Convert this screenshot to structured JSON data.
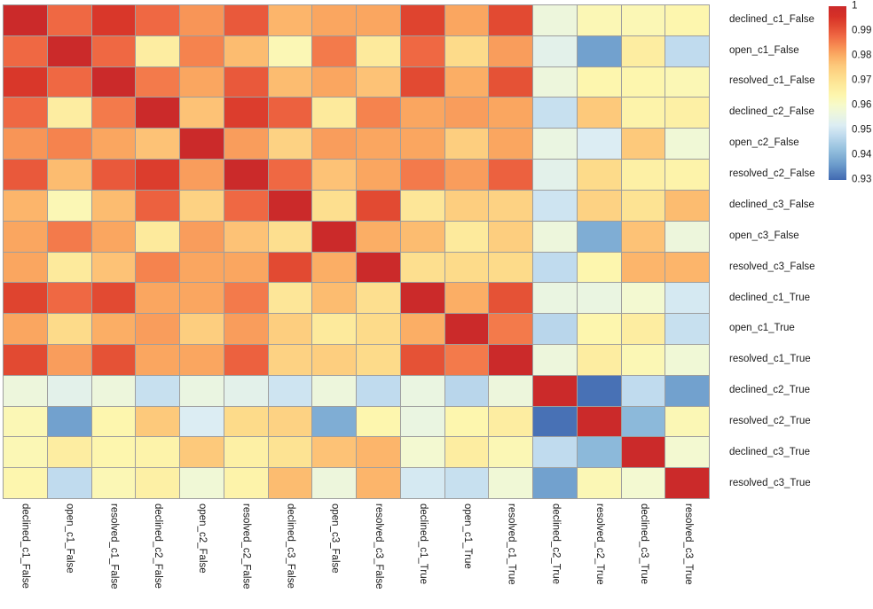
{
  "chart_data": {
    "type": "heatmap",
    "title": "",
    "xlabel": "",
    "ylabel": "",
    "row_label_side": "right",
    "col_label_rotation_deg": 90,
    "grid_line_color": "#9e9e9e",
    "background_color": "#ffffff",
    "categories": [
      "declined_c1_False",
      "open_c1_False",
      "resolved_c1_False",
      "declined_c2_False",
      "open_c2_False",
      "resolved_c2_False",
      "declined_c3_False",
      "open_c3_False",
      "resolved_c3_False",
      "declined_c1_True",
      "open_c1_True",
      "resolved_c1_True",
      "declined_c2_True",
      "resolved_c2_True",
      "declined_c3_True",
      "resolved_c3_True"
    ],
    "matrix": [
      [
        1.0,
        0.988,
        0.995,
        0.988,
        0.983,
        0.99,
        0.979,
        0.981,
        0.981,
        0.993,
        0.981,
        0.992,
        0.957,
        0.963,
        0.963,
        0.964
      ],
      [
        0.988,
        1.0,
        0.988,
        0.967,
        0.985,
        0.978,
        0.963,
        0.986,
        0.968,
        0.988,
        0.972,
        0.982,
        0.954,
        0.937,
        0.967,
        0.948
      ],
      [
        0.995,
        0.988,
        1.0,
        0.986,
        0.981,
        0.99,
        0.978,
        0.981,
        0.977,
        0.992,
        0.98,
        0.991,
        0.957,
        0.964,
        0.964,
        0.963
      ],
      [
        0.988,
        0.967,
        0.986,
        1.0,
        0.977,
        0.994,
        0.989,
        0.968,
        0.985,
        0.981,
        0.982,
        0.981,
        0.949,
        0.976,
        0.965,
        0.966
      ],
      [
        0.983,
        0.985,
        0.981,
        0.977,
        1.0,
        0.982,
        0.974,
        0.982,
        0.981,
        0.981,
        0.975,
        0.981,
        0.956,
        0.952,
        0.976,
        0.958
      ],
      [
        0.99,
        0.978,
        0.99,
        0.994,
        0.982,
        1.0,
        0.988,
        0.977,
        0.981,
        0.986,
        0.982,
        0.989,
        0.954,
        0.972,
        0.966,
        0.965
      ],
      [
        0.979,
        0.963,
        0.978,
        0.989,
        0.974,
        0.988,
        1.0,
        0.971,
        0.992,
        0.969,
        0.975,
        0.974,
        0.95,
        0.974,
        0.97,
        0.978
      ],
      [
        0.981,
        0.986,
        0.981,
        0.968,
        0.982,
        0.977,
        0.971,
        1.0,
        0.98,
        0.978,
        0.968,
        0.975,
        0.957,
        0.939,
        0.977,
        0.957
      ],
      [
        0.981,
        0.968,
        0.977,
        0.985,
        0.981,
        0.981,
        0.992,
        0.98,
        1.0,
        0.971,
        0.972,
        0.972,
        0.948,
        0.964,
        0.979,
        0.979
      ],
      [
        0.993,
        0.988,
        0.992,
        0.981,
        0.981,
        0.986,
        0.969,
        0.978,
        0.971,
        1.0,
        0.98,
        0.991,
        0.956,
        0.956,
        0.959,
        0.951
      ],
      [
        0.981,
        0.972,
        0.98,
        0.982,
        0.975,
        0.982,
        0.975,
        0.968,
        0.972,
        0.98,
        1.0,
        0.986,
        0.947,
        0.964,
        0.967,
        0.949
      ],
      [
        0.992,
        0.982,
        0.991,
        0.981,
        0.981,
        0.989,
        0.974,
        0.975,
        0.972,
        0.991,
        0.986,
        1.0,
        0.957,
        0.967,
        0.963,
        0.958
      ],
      [
        0.957,
        0.954,
        0.957,
        0.949,
        0.956,
        0.954,
        0.95,
        0.957,
        0.948,
        0.956,
        0.947,
        0.957,
        1.0,
        0.931,
        0.948,
        0.937
      ],
      [
        0.963,
        0.937,
        0.964,
        0.976,
        0.952,
        0.972,
        0.974,
        0.939,
        0.964,
        0.956,
        0.964,
        0.967,
        0.931,
        1.0,
        0.941,
        0.963
      ],
      [
        0.963,
        0.967,
        0.964,
        0.965,
        0.976,
        0.966,
        0.97,
        0.977,
        0.979,
        0.959,
        0.967,
        0.963,
        0.948,
        0.941,
        1.0,
        0.959
      ],
      [
        0.964,
        0.948,
        0.963,
        0.966,
        0.958,
        0.965,
        0.978,
        0.957,
        0.979,
        0.951,
        0.949,
        0.958,
        0.937,
        0.963,
        0.959,
        1.0
      ]
    ],
    "colorbar": {
      "min": 0.93,
      "max": 1.0,
      "ticks": [
        {
          "value": 1.0,
          "label": "1"
        },
        {
          "value": 0.99,
          "label": "0.99"
        },
        {
          "value": 0.98,
          "label": "0.98"
        },
        {
          "value": 0.97,
          "label": "0.97"
        },
        {
          "value": 0.96,
          "label": "0.96"
        },
        {
          "value": 0.95,
          "label": "0.95"
        },
        {
          "value": 0.94,
          "label": "0.94"
        },
        {
          "value": 0.93,
          "label": "0.93"
        }
      ]
    },
    "colormap": {
      "name": "RdYlBu_r",
      "stops": [
        [
          0.93,
          "#4169b1"
        ],
        [
          0.936,
          "#6b9bcb"
        ],
        [
          0.942,
          "#93bfdd"
        ],
        [
          0.948,
          "#c0dbee"
        ],
        [
          0.952,
          "#dcedf3"
        ],
        [
          0.956,
          "#eaf5e1"
        ],
        [
          0.96,
          "#f6facb"
        ],
        [
          0.964,
          "#fdf6ae"
        ],
        [
          0.968,
          "#fdea9c"
        ],
        [
          0.972,
          "#fddb8a"
        ],
        [
          0.976,
          "#fdc97b"
        ],
        [
          0.98,
          "#fbae65"
        ],
        [
          0.984,
          "#f78c52"
        ],
        [
          0.988,
          "#ef6843"
        ],
        [
          0.992,
          "#e24a32"
        ],
        [
          0.996,
          "#d63027"
        ],
        [
          1.0,
          "#cb2a2a"
        ]
      ]
    }
  }
}
